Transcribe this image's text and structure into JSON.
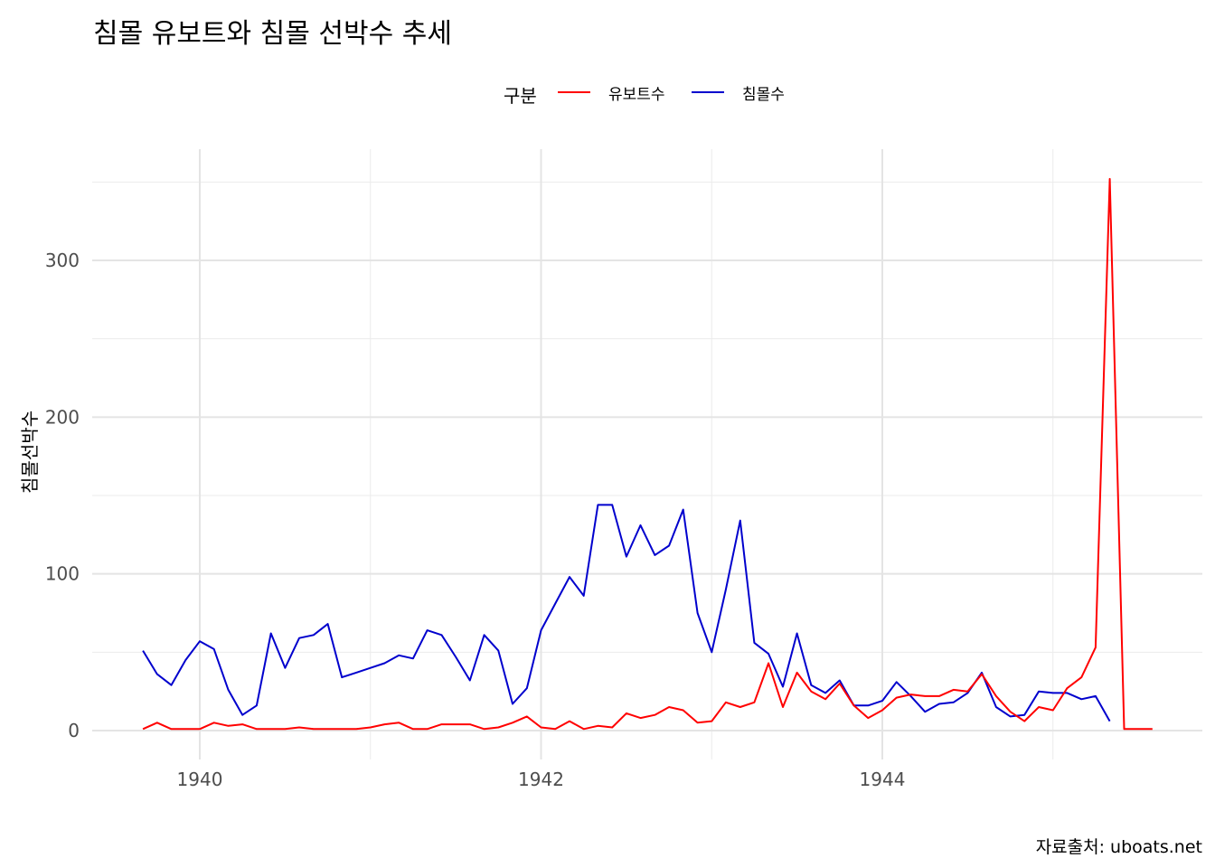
{
  "chart_data": {
    "type": "line",
    "title": "침몰 유보트와 침몰 선박수 추세",
    "xlabel": "",
    "ylabel": "침몰선박수",
    "caption": "자료출처: uboats.net",
    "legend": {
      "title": "구분",
      "placement": "top"
    },
    "xlim": [
      1939.67,
      1945.58
    ],
    "ylim": [
      0,
      350
    ],
    "xticks": [
      1940,
      1942,
      1944
    ],
    "yticks": [
      0,
      100,
      200,
      300
    ],
    "grid": true,
    "series": [
      {
        "name": "유보트수",
        "color": "#ff0000",
        "x": [
          1939.667,
          1939.75,
          1939.833,
          1939.917,
          1940.0,
          1940.083,
          1940.167,
          1940.25,
          1940.333,
          1940.417,
          1940.5,
          1940.583,
          1940.667,
          1940.75,
          1940.833,
          1940.917,
          1941.0,
          1941.083,
          1941.167,
          1941.25,
          1941.333,
          1941.417,
          1941.5,
          1941.583,
          1941.667,
          1941.75,
          1941.833,
          1941.917,
          1942.0,
          1942.083,
          1942.167,
          1942.25,
          1942.333,
          1942.417,
          1942.5,
          1942.583,
          1942.667,
          1942.75,
          1942.833,
          1942.917,
          1943.0,
          1943.083,
          1943.167,
          1943.25,
          1943.333,
          1943.417,
          1943.5,
          1943.583,
          1943.667,
          1943.75,
          1943.833,
          1943.917,
          1944.0,
          1944.083,
          1944.167,
          1944.25,
          1944.333,
          1944.417,
          1944.5,
          1944.583,
          1944.667,
          1944.75,
          1944.833,
          1944.917,
          1945.0,
          1945.083,
          1945.167,
          1945.25,
          1945.333,
          1945.417,
          1945.5,
          1945.583
        ],
        "values": [
          1,
          5,
          1,
          1,
          1,
          5,
          3,
          4,
          1,
          1,
          1,
          2,
          1,
          1,
          1,
          1,
          2,
          4,
          5,
          1,
          1,
          4,
          4,
          4,
          1,
          2,
          5,
          9,
          2,
          1,
          6,
          1,
          3,
          2,
          11,
          8,
          10,
          15,
          13,
          5,
          6,
          18,
          15,
          18,
          43,
          15,
          37,
          25,
          20,
          30,
          16,
          8,
          13,
          21,
          23,
          22,
          22,
          26,
          25,
          36,
          22,
          12,
          6,
          15,
          13,
          27,
          34,
          53,
          352,
          1,
          1,
          1
        ]
      },
      {
        "name": "침몰수",
        "color": "#0000cd",
        "x": [
          1939.667,
          1939.75,
          1939.833,
          1939.917,
          1940.0,
          1940.083,
          1940.167,
          1940.25,
          1940.333,
          1940.417,
          1940.5,
          1940.583,
          1940.667,
          1940.75,
          1940.833,
          1940.917,
          1941.0,
          1941.083,
          1941.167,
          1941.25,
          1941.333,
          1941.417,
          1941.5,
          1941.583,
          1941.667,
          1941.75,
          1941.833,
          1941.917,
          1942.0,
          1942.083,
          1942.167,
          1942.25,
          1942.333,
          1942.417,
          1942.5,
          1942.583,
          1942.667,
          1942.75,
          1942.833,
          1942.917,
          1943.0,
          1943.083,
          1943.167,
          1943.25,
          1943.333,
          1943.417,
          1943.5,
          1943.583,
          1943.667,
          1943.75,
          1943.833,
          1943.917,
          1944.0,
          1944.083,
          1944.167,
          1944.25,
          1944.333,
          1944.417,
          1944.5,
          1944.583,
          1944.667,
          1944.75,
          1944.833,
          1944.917,
          1945.0,
          1945.083,
          1945.167,
          1945.25,
          1945.333
        ],
        "values": [
          51,
          36,
          29,
          45,
          57,
          52,
          26,
          10,
          16,
          62,
          40,
          59,
          61,
          68,
          34,
          37,
          40,
          43,
          48,
          46,
          64,
          61,
          47,
          32,
          61,
          51,
          17,
          27,
          64,
          81,
          98,
          86,
          144,
          144,
          111,
          131,
          112,
          118,
          141,
          75,
          50,
          90,
          134,
          56,
          49,
          28,
          62,
          29,
          24,
          32,
          16,
          16,
          19,
          31,
          22,
          12,
          17,
          18,
          24,
          37,
          15,
          9,
          10,
          25,
          24,
          24,
          20,
          22,
          6
        ]
      }
    ]
  }
}
